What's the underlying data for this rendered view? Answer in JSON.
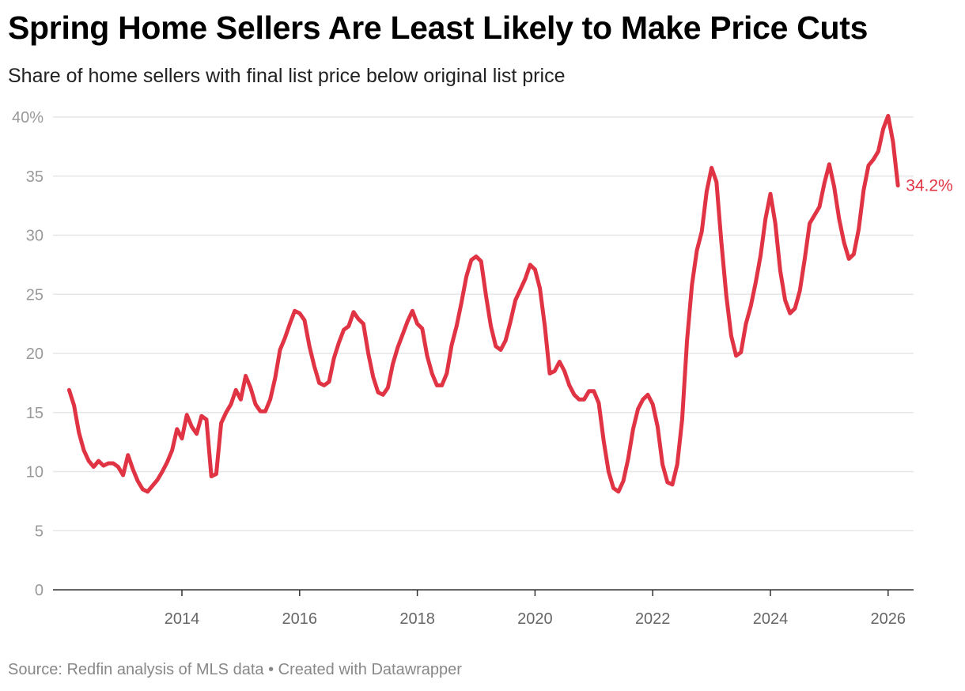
{
  "title": "Spring Home Sellers Are Least Likely to Make Price Cuts",
  "subtitle": "Share of home sellers with final list price below original list price",
  "footer": "Source: Redfin analysis of MLS data • Created with Datawrapper",
  "colors": {
    "line": "#e03444",
    "grid": "#e6e6e6",
    "axis": "#333333"
  },
  "chart_data": {
    "type": "line",
    "title": "Spring Home Sellers Are Least Likely to Make Price Cuts",
    "subtitle": "Share of home sellers with final list price below original list price",
    "xlabel": "",
    "ylabel": "",
    "ylim": [
      0,
      40
    ],
    "y_ticks": [
      "0",
      "5",
      "10",
      "15",
      "20",
      "25",
      "30",
      "35",
      "40%"
    ],
    "y_tick_values": [
      0,
      5,
      10,
      15,
      20,
      25,
      30,
      35,
      40
    ],
    "x_ticks": [
      "2014",
      "2016",
      "2018",
      "2020",
      "2022",
      "2024",
      "2026"
    ],
    "grid": true,
    "end_label": "34.2%",
    "x_start": "2012-02",
    "x_end": "2026-03",
    "values": [
      16.9,
      15.6,
      13.3,
      11.8,
      10.9,
      10.4,
      10.9,
      10.5,
      10.7,
      10.7,
      10.4,
      9.7,
      11.4,
      10.2,
      9.2,
      8.5,
      8.3,
      8.8,
      9.3,
      10.0,
      10.8,
      11.8,
      13.6,
      12.8,
      14.8,
      13.8,
      13.2,
      14.7,
      14.4,
      9.6,
      9.8,
      14.1,
      15.0,
      15.7,
      16.9,
      16.1,
      18.1,
      17.1,
      15.7,
      15.1,
      15.1,
      16.1,
      17.9,
      20.3,
      21.3,
      22.5,
      23.6,
      23.4,
      22.8,
      20.6,
      18.9,
      17.5,
      17.3,
      17.6,
      19.6,
      20.9,
      22.0,
      22.3,
      23.5,
      22.9,
      22.5,
      20.0,
      18.0,
      16.7,
      16.5,
      17.1,
      19.1,
      20.5,
      21.6,
      22.7,
      23.6,
      22.5,
      22.1,
      19.8,
      18.3,
      17.3,
      17.3,
      18.3,
      20.7,
      22.3,
      24.3,
      26.5,
      27.9,
      28.2,
      27.8,
      24.9,
      22.3,
      20.6,
      20.3,
      21.1,
      22.7,
      24.5,
      25.4,
      26.3,
      27.5,
      27.1,
      25.5,
      22.3,
      18.3,
      18.5,
      19.3,
      18.5,
      17.3,
      16.5,
      16.1,
      16.1,
      16.8,
      16.8,
      15.8,
      12.6,
      10.0,
      8.6,
      8.3,
      9.2,
      11.1,
      13.6,
      15.3,
      16.1,
      16.5,
      15.7,
      13.8,
      10.6,
      9.1,
      8.9,
      10.6,
      14.4,
      21.1,
      25.8,
      28.7,
      30.3,
      33.7,
      35.7,
      34.5,
      29.4,
      24.9,
      21.5,
      19.8,
      20.1,
      22.5,
      24.0,
      26.0,
      28.3,
      31.4,
      33.5,
      31.0,
      27.0,
      24.5,
      23.4,
      23.8,
      25.3,
      28.0,
      31.0,
      31.7,
      32.4,
      34.4,
      36.0,
      34.1,
      31.4,
      29.4,
      28.0,
      28.4,
      30.5,
      33.8,
      35.9,
      36.4,
      37.1,
      39.0,
      40.1,
      37.9,
      34.2
    ]
  }
}
